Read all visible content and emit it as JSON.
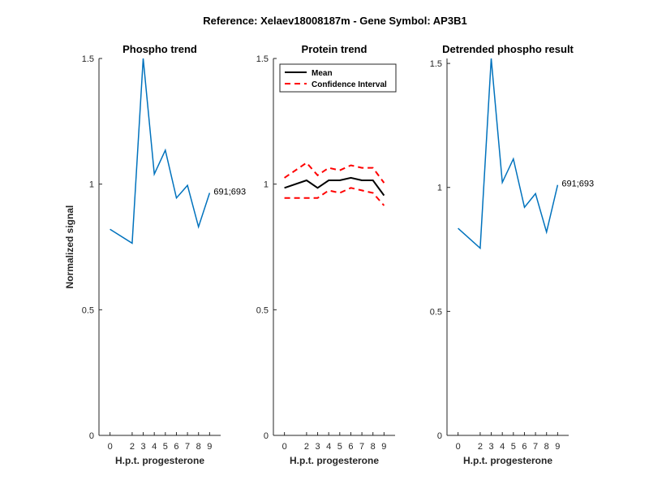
{
  "figure_title": "Reference:  Xelaev18008187m - Gene Symbol:  AP3B1",
  "colors": {
    "series": "#0072BD",
    "mean": "#000000",
    "ci": "#FF0000",
    "axis": "#262626"
  },
  "chart_data": [
    {
      "type": "line",
      "title": "Phospho trend",
      "xlabel": "H.p.t. progesterone",
      "ylabel": "Normalized signal",
      "x": [
        0,
        2,
        3,
        4,
        5,
        6,
        7,
        8,
        9
      ],
      "xtick_labels": [
        "0",
        "2",
        "3",
        "4",
        "5",
        "6",
        "7",
        "8",
        "9"
      ],
      "ylim": [
        0,
        1.5
      ],
      "yticks": [
        0,
        0.5,
        1,
        1.5
      ],
      "ytick_labels": [
        "0",
        "0.5",
        "1",
        "1.5"
      ],
      "grid": false,
      "series": [
        {
          "values": [
            0.82,
            0.765,
            1.5,
            1.04,
            1.135,
            0.945,
            0.995,
            0.83,
            0.965
          ]
        }
      ],
      "annotation": "691;693"
    },
    {
      "type": "line",
      "title": "Protein trend",
      "xlabel": "H.p.t. progesterone",
      "ylabel": "",
      "x": [
        0,
        2,
        3,
        4,
        5,
        6,
        7,
        8,
        9
      ],
      "xtick_labels": [
        "0",
        "2",
        "3",
        "4",
        "5",
        "6",
        "7",
        "8",
        "9"
      ],
      "ylim": [
        0,
        1.5
      ],
      "yticks": [
        0,
        0.5,
        1,
        1.5
      ],
      "ytick_labels": [
        "0",
        "0.5",
        "1",
        "1.5"
      ],
      "grid": false,
      "legend_position": "top-left",
      "series": [
        {
          "name": "Mean",
          "values": [
            0.985,
            1.015,
            0.985,
            1.015,
            1.015,
            1.025,
            1.015,
            1.015,
            0.955
          ]
        },
        {
          "name": "Confidence Interval",
          "values": [
            1.025,
            1.085,
            1.035,
            1.065,
            1.055,
            1.075,
            1.065,
            1.065,
            1.005
          ]
        },
        {
          "values": [
            0.945,
            0.945,
            0.945,
            0.975,
            0.965,
            0.985,
            0.975,
            0.965,
            0.915
          ]
        }
      ]
    },
    {
      "type": "line",
      "title": "Detrended phospho result",
      "xlabel": "H.p.t. progesterone",
      "ylabel": "",
      "x": [
        0,
        2,
        3,
        4,
        5,
        6,
        7,
        8,
        9
      ],
      "xtick_labels": [
        "0",
        "2",
        "3",
        "4",
        "5",
        "6",
        "7",
        "8",
        "9"
      ],
      "ylim": [
        0,
        1.52
      ],
      "yticks": [
        0,
        0.5,
        1,
        1.5
      ],
      "ytick_labels": [
        "0",
        "0.5",
        "1",
        "1.5"
      ],
      "grid": false,
      "series": [
        {
          "values": [
            0.835,
            0.755,
            1.52,
            1.02,
            1.115,
            0.92,
            0.975,
            0.82,
            1.01
          ]
        }
      ],
      "annotation": "691;693"
    }
  ]
}
